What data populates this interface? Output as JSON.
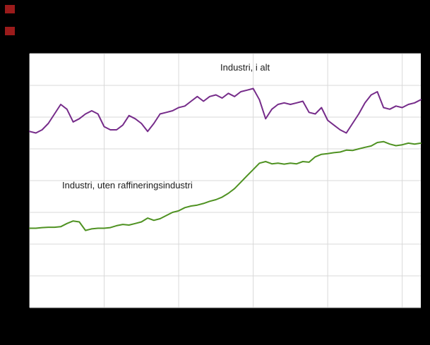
{
  "page": {
    "background": "#000000",
    "logo_color": "#9b1b1b"
  },
  "chart_data": {
    "type": "line",
    "title": "",
    "x_note": "monthly observations, index 0-63; axis tick labels not visible in screenshot",
    "x_count": 64,
    "ylim": [
      70,
      150
    ],
    "y_gridline_step": 10,
    "x_gridline_every": 12,
    "grid": true,
    "plot_background": "#ffffff",
    "gridline_color": "#d9d9d9",
    "legend_position": "inline-labels",
    "series": [
      {
        "name": "Industri, i alt",
        "color": "#762c8a",
        "values": [
          125.5,
          125.0,
          126.0,
          128.0,
          131.0,
          134.0,
          132.5,
          128.5,
          129.5,
          131.0,
          132.0,
          131.0,
          127.0,
          126.0,
          126.0,
          127.5,
          130.5,
          129.5,
          128.0,
          125.5,
          128.0,
          131.0,
          131.5,
          132.0,
          133.0,
          133.5,
          135.0,
          136.5,
          135.0,
          136.5,
          137.0,
          136.0,
          137.5,
          136.5,
          138.0,
          138.5,
          139.0,
          135.5,
          129.5,
          132.5,
          134.0,
          134.5,
          134.0,
          134.5,
          135.0,
          131.5,
          131.0,
          133.0,
          129.0,
          127.5,
          126.0,
          125.0,
          128.0,
          131.0,
          134.5,
          137.0,
          138.0,
          133.0,
          132.5,
          133.5,
          133.0,
          134.0,
          134.5,
          135.5
        ]
      },
      {
        "name": "Industri, uten raffineringsindustri",
        "color": "#4f9222",
        "values": [
          95.0,
          95.0,
          95.2,
          95.3,
          95.3,
          95.5,
          96.5,
          97.3,
          97.0,
          94.3,
          94.8,
          95.0,
          95.0,
          95.2,
          95.8,
          96.2,
          96.0,
          96.5,
          97.0,
          98.2,
          97.5,
          98.0,
          99.0,
          100.0,
          100.5,
          101.5,
          102.0,
          102.3,
          102.8,
          103.5,
          104.0,
          104.8,
          106.0,
          107.5,
          109.5,
          111.5,
          113.5,
          115.5,
          116.0,
          115.3,
          115.5,
          115.2,
          115.5,
          115.3,
          116.0,
          115.8,
          117.5,
          118.3,
          118.5,
          118.8,
          119.0,
          119.6,
          119.5,
          120.0,
          120.5,
          120.9,
          122.0,
          122.3,
          121.5,
          121.0,
          121.3,
          121.8,
          121.5,
          121.8
        ]
      }
    ]
  }
}
